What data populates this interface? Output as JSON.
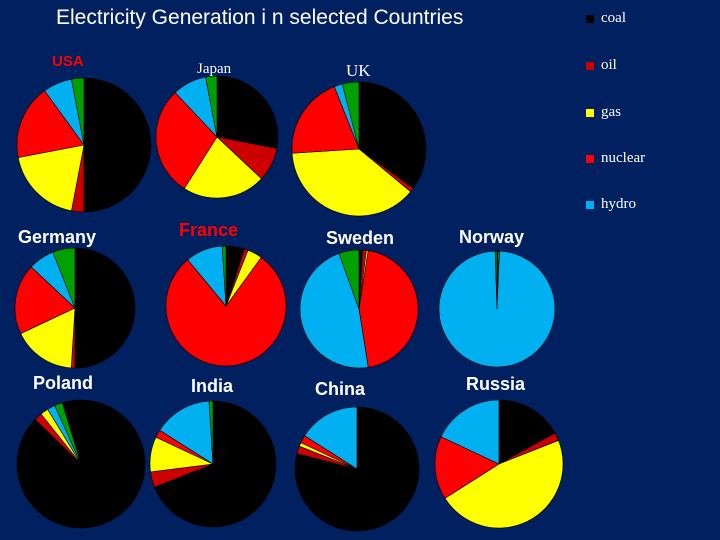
{
  "title": "Electricity Generation i n selected Countries",
  "chart_data": {
    "type": "pie",
    "title": "Electricity Generation i n selected Countries",
    "categories": [
      "coal",
      "oil",
      "gas",
      "nuclear",
      "hydro"
    ],
    "colors": {
      "coal": "#000000",
      "oil": "#cc0000",
      "gas": "#ffff00",
      "nuclear": "#ff0000",
      "hydro": "#00b0f0",
      "background": "#002060",
      "label_red": "#ff0000",
      "label_white": "#ffffff"
    },
    "series": [
      {
        "name": "USA",
        "values": {
          "coal": 50,
          "oil": 3,
          "gas": 19,
          "nuclear": 18,
          "hydro": 7,
          "other": 3
        }
      },
      {
        "name": "Japan",
        "values": {
          "coal": 28,
          "oil": 9,
          "gas": 22,
          "nuclear": 29,
          "hydro": 9,
          "other": 3
        }
      },
      {
        "name": "UK",
        "values": {
          "coal": 35,
          "oil": 1,
          "gas": 38,
          "nuclear": 20,
          "hydro": 2,
          "other": 4
        }
      },
      {
        "name": "Germany",
        "values": {
          "coal": 50,
          "oil": 1,
          "gas": 17,
          "nuclear": 19,
          "hydro": 7,
          "other": 6
        }
      },
      {
        "name": "France",
        "values": {
          "coal": 5,
          "oil": 1,
          "gas": 4,
          "nuclear": 79,
          "hydro": 10,
          "other": 1
        }
      },
      {
        "name": "Sweden",
        "values": {
          "coal": 1,
          "oil": 1,
          "gas": 0.5,
          "nuclear": 45,
          "hydro": 47,
          "other": 5.5
        }
      },
      {
        "name": "Norway",
        "values": {
          "coal": 0.2,
          "oil": 0.2,
          "gas": 0.3,
          "nuclear": 0,
          "hydro": 98.8,
          "other": 0.5
        }
      },
      {
        "name": "Poland",
        "values": {
          "coal": 92,
          "oil": 2,
          "gas": 2,
          "nuclear": 0,
          "hydro": 2,
          "other": 2
        }
      },
      {
        "name": "India",
        "values": {
          "coal": 69,
          "oil": 4,
          "gas": 9,
          "nuclear": 2,
          "hydro": 15,
          "other": 1
        }
      },
      {
        "name": "China",
        "values": {
          "coal": 79,
          "oil": 2,
          "gas": 1,
          "nuclear": 2,
          "hydro": 16,
          "other": 0
        }
      },
      {
        "name": "Russia",
        "values": {
          "coal": 17,
          "oil": 2,
          "gas": 47,
          "nuclear": 16,
          "hydro": 18,
          "other": 0
        }
      }
    ],
    "legend": "right",
    "grid": false
  }
}
